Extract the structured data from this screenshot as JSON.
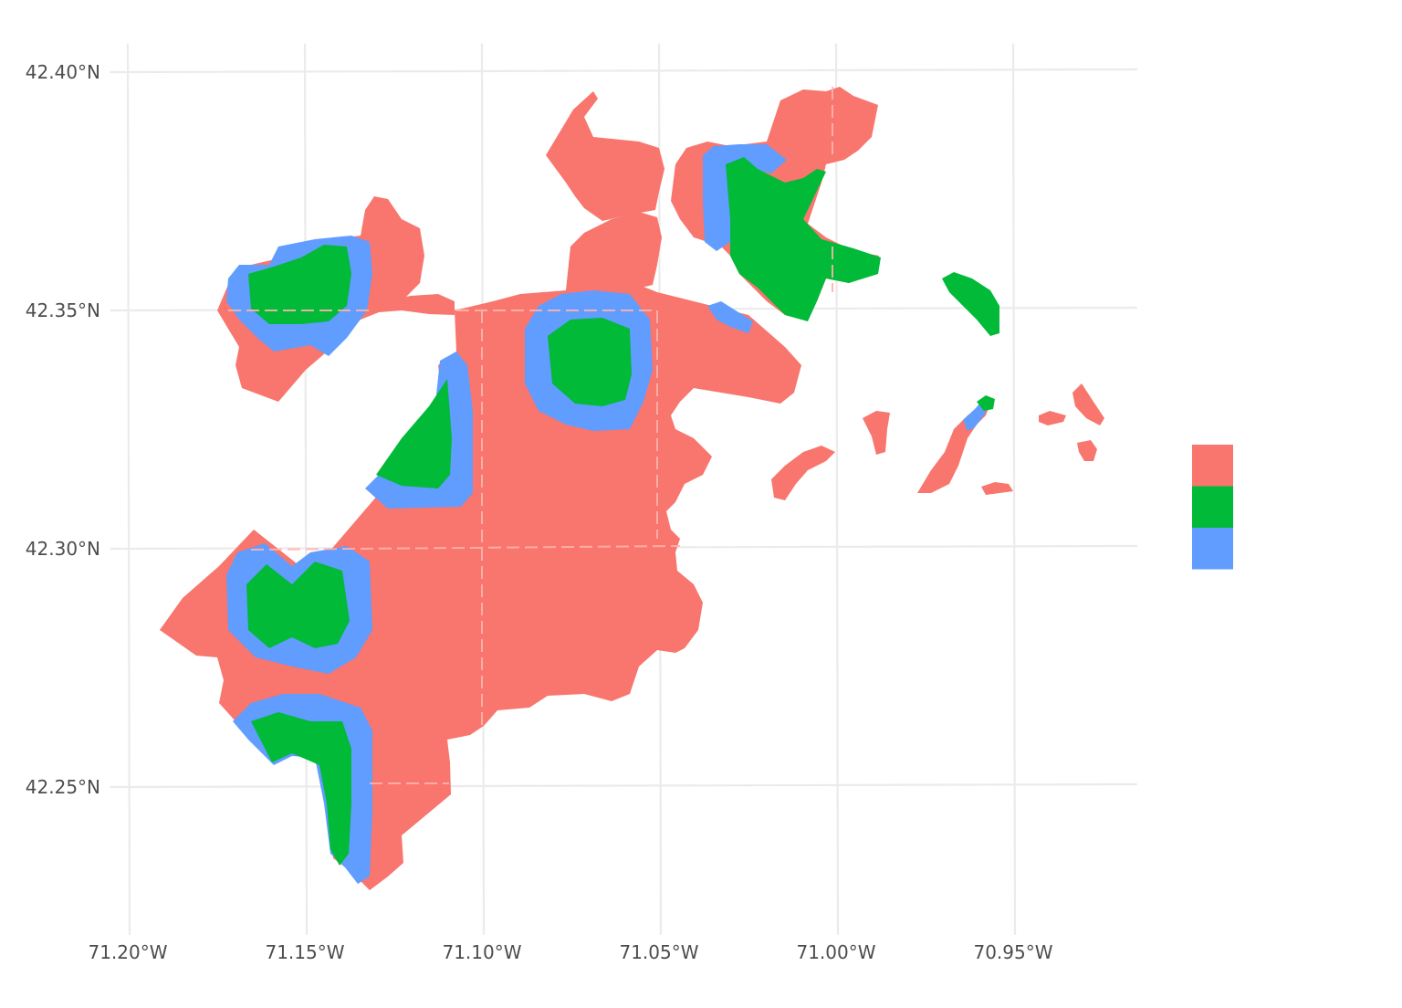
{
  "colors": {
    "category_1": "#F8766D",
    "category_2": "#00BA38",
    "category_3": "#619CFF",
    "grid": "#EBEBEB",
    "internal_boundary": "#FFB3AD",
    "background": "#FFFFFF"
  },
  "axes": {
    "x_ticks": [
      {
        "value": -71.2,
        "label": "71.20°W"
      },
      {
        "value": -71.15,
        "label": "71.15°W"
      },
      {
        "value": -71.1,
        "label": "71.10°W"
      },
      {
        "value": -71.05,
        "label": "71.05°W"
      },
      {
        "value": -71.0,
        "label": "71.00°W"
      },
      {
        "value": -70.95,
        "label": "70.95°W"
      }
    ],
    "y_ticks": [
      {
        "value": 42.25,
        "label": "42.25°N"
      },
      {
        "value": 42.3,
        "label": "42.30°N"
      },
      {
        "value": 42.35,
        "label": "42.35°N"
      },
      {
        "value": 42.4,
        "label": "42.40°N"
      }
    ],
    "x_range": [
      -71.205,
      -70.915
    ],
    "y_range": [
      42.219,
      42.406
    ]
  },
  "legend": {
    "title": "",
    "placement": "right",
    "keys": [
      {
        "category": "category_1",
        "color": "#F8766D"
      },
      {
        "category": "category_2",
        "color": "#00BA38"
      },
      {
        "category": "category_3",
        "color": "#619CFF"
      }
    ]
  },
  "grid": true
}
